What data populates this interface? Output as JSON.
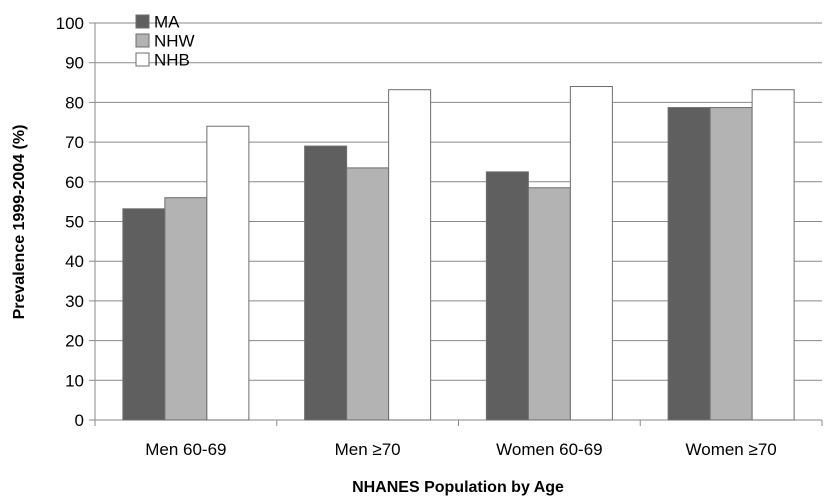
{
  "chart_data": {
    "type": "bar",
    "title": "",
    "xlabel": "NHANES Population by Age",
    "ylabel": "Prevalence 1999-2004 (%)",
    "ylim": [
      0,
      100
    ],
    "yticks": [
      0,
      10,
      20,
      30,
      40,
      50,
      60,
      70,
      80,
      90,
      100
    ],
    "grid": true,
    "legend_position": "top-left",
    "categories": [
      "Men 60-69",
      "Men ≥70",
      "Women 60-69",
      "Women ≥70"
    ],
    "series": [
      {
        "name": "MA",
        "color": "#5f5f5f",
        "values": [
          53.2,
          69.0,
          62.5,
          78.7
        ]
      },
      {
        "name": "NHW",
        "color": "#b3b3b3",
        "values": [
          56.0,
          63.5,
          58.5,
          78.7
        ]
      },
      {
        "name": "NHB",
        "color": "#ffffff",
        "values": [
          74.0,
          83.2,
          84.0,
          83.2
        ]
      }
    ]
  }
}
